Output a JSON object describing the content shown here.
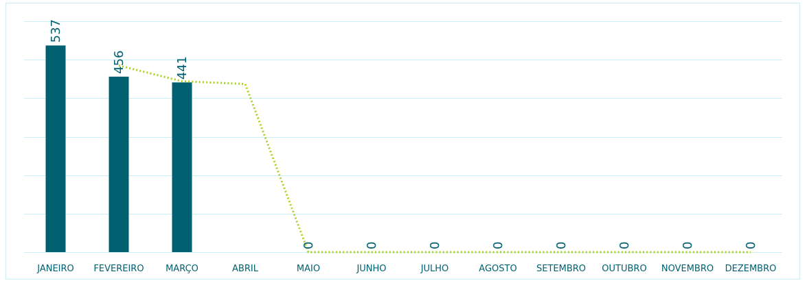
{
  "chart_data": {
    "type": "bar",
    "categories": [
      "JANEIRO",
      "FEVEREIRO",
      "MARÇO",
      "ABRIL",
      "MAIO",
      "JUNHO",
      "JULHO",
      "AGOSTO",
      "SETEMBRO",
      "OUTUBRO",
      "NOVEMBRO",
      "DEZEMBRO"
    ],
    "series": [
      {
        "type": "bar",
        "values": [
          537,
          456,
          441,
          null,
          0,
          0,
          0,
          0,
          0,
          0,
          0,
          0
        ],
        "value_labels": [
          "537",
          "456",
          "441",
          "",
          "0",
          "0",
          "0",
          "0",
          "0",
          "0",
          "0",
          "0"
        ],
        "color": "#00606f"
      },
      {
        "type": "line",
        "values": [
          null,
          485,
          444,
          437,
          0,
          0,
          0,
          0,
          0,
          0,
          0,
          0
        ],
        "color": "#a6d11c",
        "style": "dotted"
      }
    ],
    "ylim": [
      0,
      600
    ],
    "grid": true,
    "y_tick_labels_shown": false,
    "legend": "none",
    "title": "",
    "xlabel": "",
    "ylabel": ""
  },
  "colors": {
    "bar": "#00606f",
    "line": "#a6d11c",
    "grid": "#cdeff4",
    "text": "#00606f"
  }
}
